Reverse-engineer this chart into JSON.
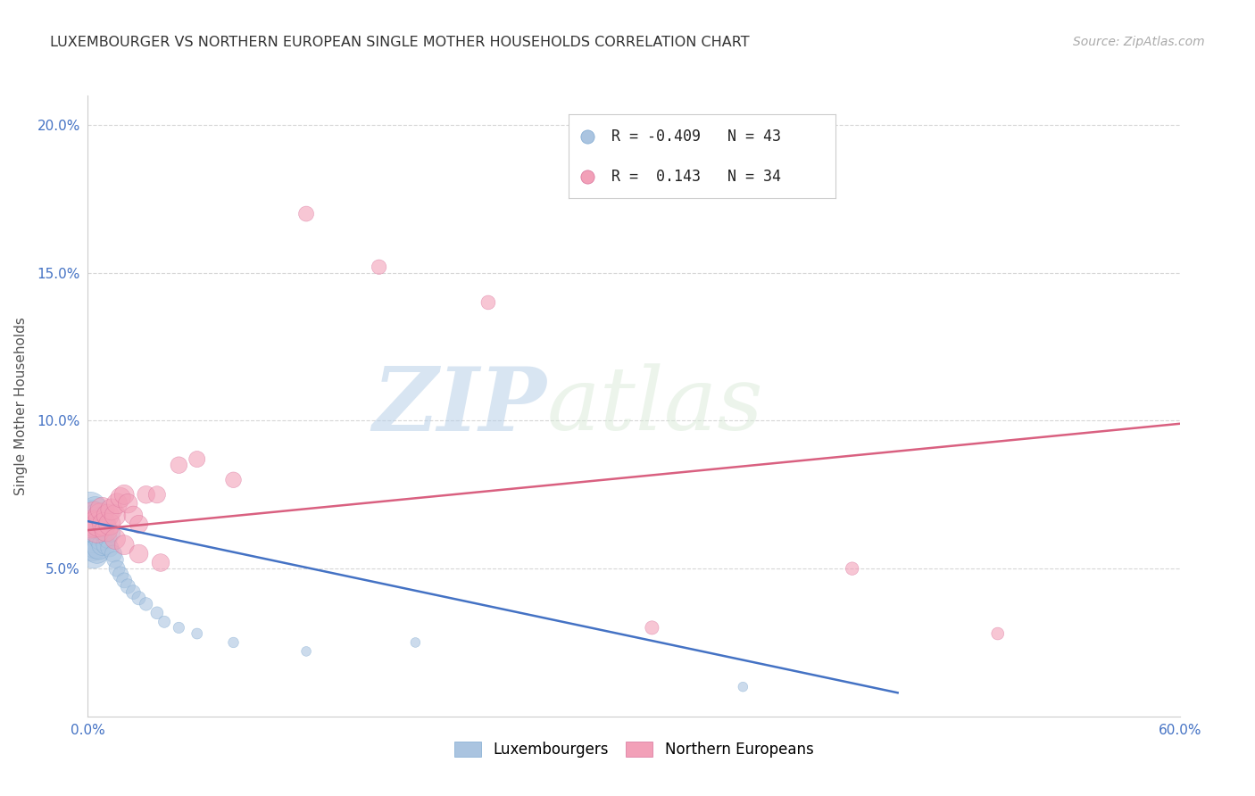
{
  "title": "LUXEMBOURGER VS NORTHERN EUROPEAN SINGLE MOTHER HOUSEHOLDS CORRELATION CHART",
  "source": "Source: ZipAtlas.com",
  "ylabel": "Single Mother Households",
  "xlim": [
    0.0,
    0.6
  ],
  "ylim": [
    0.0,
    0.21
  ],
  "xticks": [
    0.0,
    0.1,
    0.2,
    0.3,
    0.4,
    0.5,
    0.6
  ],
  "yticks": [
    0.05,
    0.1,
    0.15,
    0.2
  ],
  "xtick_labels": [
    "0.0%",
    "",
    "",
    "",
    "",
    "",
    "60.0%"
  ],
  "ytick_labels": [
    "5.0%",
    "10.0%",
    "15.0%",
    "20.0%"
  ],
  "legend_blue_r": "-0.409",
  "legend_blue_n": "43",
  "legend_pink_r": "0.143",
  "legend_pink_n": "34",
  "blue_color": "#aac4e0",
  "pink_color": "#f2a0b8",
  "blue_line_color": "#4472c4",
  "pink_line_color": "#d96080",
  "watermark_zip": "ZIP",
  "watermark_atlas": "atlas",
  "blue_line_x": [
    0.0,
    0.445
  ],
  "blue_line_y": [
    0.066,
    0.008
  ],
  "pink_line_x": [
    0.0,
    0.6
  ],
  "pink_line_y": [
    0.063,
    0.099
  ],
  "blue_points_x": [
    0.001,
    0.001,
    0.002,
    0.002,
    0.002,
    0.003,
    0.003,
    0.003,
    0.004,
    0.004,
    0.004,
    0.005,
    0.005,
    0.005,
    0.006,
    0.006,
    0.007,
    0.007,
    0.008,
    0.008,
    0.009,
    0.01,
    0.01,
    0.011,
    0.012,
    0.013,
    0.014,
    0.015,
    0.016,
    0.018,
    0.02,
    0.022,
    0.025,
    0.028,
    0.032,
    0.038,
    0.042,
    0.05,
    0.06,
    0.08,
    0.12,
    0.18,
    0.36
  ],
  "blue_points_y": [
    0.065,
    0.07,
    0.058,
    0.062,
    0.068,
    0.055,
    0.06,
    0.066,
    0.058,
    0.063,
    0.07,
    0.056,
    0.062,
    0.068,
    0.057,
    0.064,
    0.06,
    0.067,
    0.058,
    0.065,
    0.062,
    0.058,
    0.065,
    0.06,
    0.057,
    0.062,
    0.055,
    0.053,
    0.05,
    0.048,
    0.046,
    0.044,
    0.042,
    0.04,
    0.038,
    0.035,
    0.032,
    0.03,
    0.028,
    0.025,
    0.022,
    0.025,
    0.01
  ],
  "blue_point_sizes": [
    180,
    160,
    140,
    130,
    120,
    110,
    105,
    100,
    95,
    90,
    85,
    82,
    78,
    75,
    70,
    68,
    65,
    62,
    58,
    55,
    52,
    50,
    48,
    45,
    42,
    40,
    38,
    36,
    34,
    32,
    30,
    28,
    26,
    24,
    22,
    20,
    18,
    16,
    15,
    14,
    12,
    12,
    12
  ],
  "pink_points_x": [
    0.002,
    0.003,
    0.004,
    0.005,
    0.006,
    0.007,
    0.008,
    0.009,
    0.01,
    0.011,
    0.012,
    0.013,
    0.015,
    0.016,
    0.018,
    0.02,
    0.022,
    0.025,
    0.028,
    0.032,
    0.038,
    0.05,
    0.06,
    0.08,
    0.12,
    0.16,
    0.22,
    0.31,
    0.42,
    0.5,
    0.015,
    0.02,
    0.028,
    0.04
  ],
  "pink_points_y": [
    0.065,
    0.068,
    0.065,
    0.063,
    0.065,
    0.068,
    0.07,
    0.065,
    0.063,
    0.068,
    0.065,
    0.07,
    0.068,
    0.072,
    0.074,
    0.075,
    0.072,
    0.068,
    0.065,
    0.075,
    0.075,
    0.085,
    0.087,
    0.08,
    0.17,
    0.152,
    0.14,
    0.03,
    0.05,
    0.028,
    0.06,
    0.058,
    0.055,
    0.052
  ],
  "pink_point_sizes": [
    100,
    95,
    90,
    85,
    82,
    78,
    75,
    72,
    68,
    65,
    62,
    60,
    58,
    55,
    52,
    50,
    48,
    45,
    42,
    40,
    38,
    36,
    34,
    32,
    30,
    28,
    26,
    24,
    22,
    20,
    55,
    50,
    45,
    40
  ]
}
